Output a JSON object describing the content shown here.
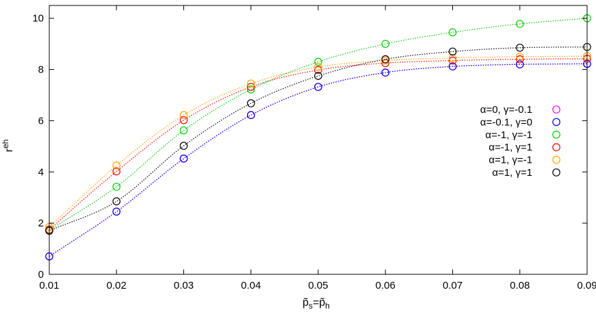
{
  "chart_data": {
    "type": "scatter",
    "title": "",
    "xlabel": "p̃s=p̃h",
    "ylabel": "reh",
    "xlim": [
      0.01,
      0.09
    ],
    "ylim": [
      0,
      10.5
    ],
    "xticks": [
      0.01,
      0.02,
      0.03,
      0.04,
      0.05,
      0.06,
      0.07,
      0.08,
      0.09
    ],
    "xtick_labels": [
      "0.01",
      "0.02",
      "0.03",
      "0.04",
      "0.05",
      "0.06",
      "0.07",
      "0.08",
      "0.09"
    ],
    "yticks": [
      0,
      2,
      4,
      6,
      8,
      10
    ],
    "ytick_labels": [
      "0",
      "2",
      "4",
      "6",
      "8",
      "10"
    ],
    "grid": false,
    "legend_position": "right",
    "x": [
      0.01,
      0.02,
      0.03,
      0.04,
      0.05,
      0.06,
      0.07,
      0.08,
      0.09
    ],
    "series": [
      {
        "name": "α=0, γ=-0.1",
        "color": "#ff00ff",
        "values": [
          0.7,
          2.45,
          4.52,
          6.22,
          7.32,
          7.88,
          8.12,
          8.2,
          8.22
        ]
      },
      {
        "name": "α=-0.1, γ=0",
        "color": "#0000ff",
        "values": [
          0.7,
          2.45,
          4.52,
          6.22,
          7.32,
          7.88,
          8.12,
          8.2,
          8.22
        ]
      },
      {
        "name": "α=-1, γ=-1",
        "color": "#00cc00",
        "values": [
          1.72,
          3.42,
          5.62,
          7.22,
          8.3,
          9.0,
          9.45,
          9.78,
          10.0
        ]
      },
      {
        "name": "α=-1, γ=1",
        "color": "#ff0000",
        "values": [
          1.75,
          4.02,
          6.02,
          7.32,
          7.98,
          8.25,
          8.35,
          8.4,
          8.42
        ]
      },
      {
        "name": "α=1, γ=-1",
        "color": "#ffa500",
        "values": [
          1.85,
          4.25,
          6.22,
          7.45,
          8.1,
          8.35,
          8.45,
          8.5,
          8.52
        ]
      },
      {
        "name": "α=1, γ=1",
        "color": "#000000",
        "values": [
          1.7,
          2.85,
          5.02,
          6.68,
          7.75,
          8.4,
          8.7,
          8.85,
          8.88
        ]
      }
    ]
  }
}
